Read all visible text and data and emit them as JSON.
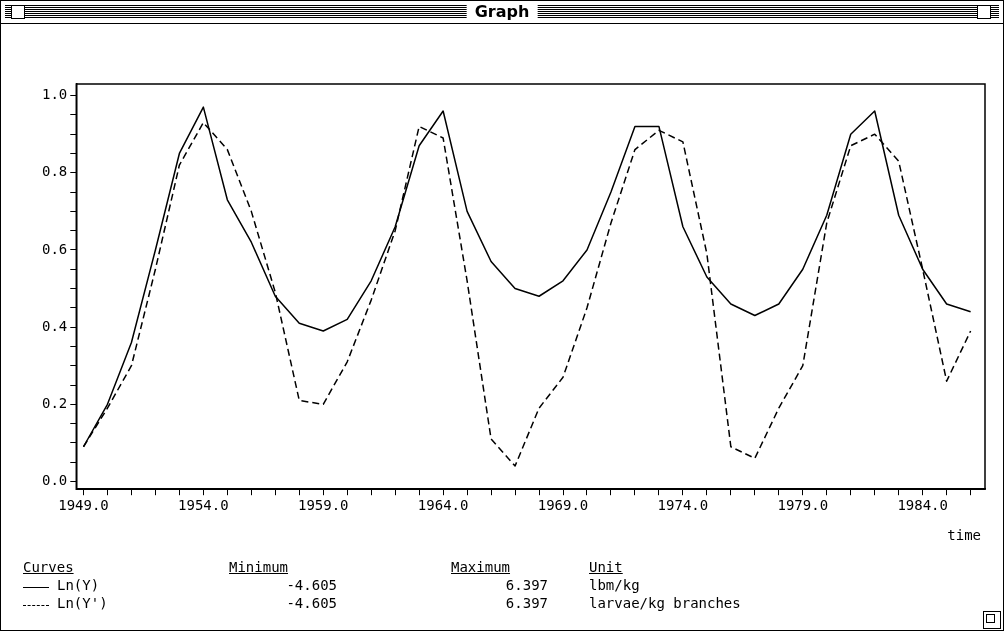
{
  "chart_data": {
    "type": "line",
    "title": "Graph",
    "xlabel": "time",
    "legend_title": "Curves",
    "legend": "bottom left",
    "marker": "none",
    "grid": false,
    "x": [
      1949,
      1950,
      1951,
      1952,
      1953,
      1954,
      1955,
      1956,
      1957,
      1958,
      1959,
      1960,
      1961,
      1962,
      1963,
      1964,
      1965,
      1966,
      1967,
      1968,
      1969,
      1970,
      1971,
      1972,
      1973,
      1974,
      1975,
      1976,
      1977,
      1978,
      1979,
      1980,
      1981,
      1982,
      1983,
      1984,
      1985,
      1986
    ],
    "series": [
      {
        "name": "Ln(Y)",
        "color": "#000000",
        "line_style": "solid",
        "values": [
          0.09,
          0.2,
          0.36,
          0.6,
          0.85,
          0.97,
          0.73,
          0.62,
          0.48,
          0.41,
          0.39,
          0.42,
          0.52,
          0.66,
          0.87,
          0.96,
          0.7,
          0.57,
          0.5,
          0.48,
          0.52,
          0.6,
          0.75,
          0.92,
          0.92,
          0.66,
          0.53,
          0.46,
          0.43,
          0.46,
          0.55,
          0.69,
          0.9,
          0.96,
          0.69,
          0.55,
          0.46,
          0.44
        ]
      },
      {
        "name": "Ln(Y')",
        "color": "#000000",
        "line_style": "dashed",
        "values": [
          0.09,
          0.19,
          0.3,
          0.55,
          0.82,
          0.93,
          0.86,
          0.7,
          0.49,
          0.21,
          0.2,
          0.31,
          0.47,
          0.65,
          0.92,
          0.89,
          0.52,
          0.11,
          0.04,
          0.19,
          0.27,
          0.45,
          0.67,
          0.86,
          0.91,
          0.88,
          0.59,
          0.09,
          0.06,
          0.19,
          0.3,
          0.67,
          0.87,
          0.9,
          0.83,
          0.55,
          0.26,
          0.39
        ]
      }
    ],
    "xlim": [
      1948.7,
      1986.6
    ],
    "xticks": [
      {
        "value": 1949,
        "label": "1949.0"
      },
      {
        "value": 1950,
        "label": null
      },
      {
        "value": 1951,
        "label": null
      },
      {
        "value": 1952,
        "label": null
      },
      {
        "value": 1953,
        "label": null
      },
      {
        "value": 1954,
        "label": "1954.0"
      },
      {
        "value": 1955,
        "label": null
      },
      {
        "value": 1956,
        "label": null
      },
      {
        "value": 1957,
        "label": null
      },
      {
        "value": 1958,
        "label": null
      },
      {
        "value": 1959,
        "label": "1959.0"
      },
      {
        "value": 1960,
        "label": null
      },
      {
        "value": 1961,
        "label": null
      },
      {
        "value": 1962,
        "label": null
      },
      {
        "value": 1963,
        "label": null
      },
      {
        "value": 1964,
        "label": "1964.0"
      },
      {
        "value": 1965,
        "label": null
      },
      {
        "value": 1966,
        "label": null
      },
      {
        "value": 1967,
        "label": null
      },
      {
        "value": 1968,
        "label": null
      },
      {
        "value": 1969,
        "label": "1969.0"
      },
      {
        "value": 1970,
        "label": null
      },
      {
        "value": 1971,
        "label": null
      },
      {
        "value": 1972,
        "label": null
      },
      {
        "value": 1973,
        "label": null
      },
      {
        "value": 1974,
        "label": "1974.0"
      },
      {
        "value": 1975,
        "label": null
      },
      {
        "value": 1976,
        "label": null
      },
      {
        "value": 1977,
        "label": null
      },
      {
        "value": 1978,
        "label": null
      },
      {
        "value": 1979,
        "label": "1979.0"
      },
      {
        "value": 1980,
        "label": null
      },
      {
        "value": 1981,
        "label": null
      },
      {
        "value": 1982,
        "label": null
      },
      {
        "value": 1983,
        "label": null
      },
      {
        "value": 1984,
        "label": "1984.0"
      },
      {
        "value": 1985,
        "label": null
      },
      {
        "value": 1986,
        "label": null
      }
    ],
    "ylim": [
      -0.02,
      1.03
    ],
    "yticks": [
      {
        "value": 0,
        "label": "0.0"
      },
      {
        "value": 0.05,
        "label": null
      },
      {
        "value": 0.1,
        "label": null
      },
      {
        "value": 0.15,
        "label": null
      },
      {
        "value": 0.2,
        "label": "0.2"
      },
      {
        "value": 0.25,
        "label": null
      },
      {
        "value": 0.3,
        "label": null
      },
      {
        "value": 0.35,
        "label": null
      },
      {
        "value": 0.4,
        "label": "0.4"
      },
      {
        "value": 0.45,
        "label": null
      },
      {
        "value": 0.5,
        "label": null
      },
      {
        "value": 0.55,
        "label": null
      },
      {
        "value": 0.6,
        "label": "0.6"
      },
      {
        "value": 0.65,
        "label": null
      },
      {
        "value": 0.7,
        "label": null
      },
      {
        "value": 0.75,
        "label": null
      },
      {
        "value": 0.8,
        "label": "0.8"
      },
      {
        "value": 0.85,
        "label": null
      },
      {
        "value": 0.9,
        "label": null
      },
      {
        "value": 0.95,
        "label": null
      },
      {
        "value": 1.0,
        "label": "1.0"
      }
    ],
    "annotations": [
      "Minimum",
      "Maximum",
      "Unit",
      "-4.605",
      "6.397",
      "lbm/kg",
      "-4.605",
      "6.397",
      "larvae/kg branches"
    ]
  }
}
